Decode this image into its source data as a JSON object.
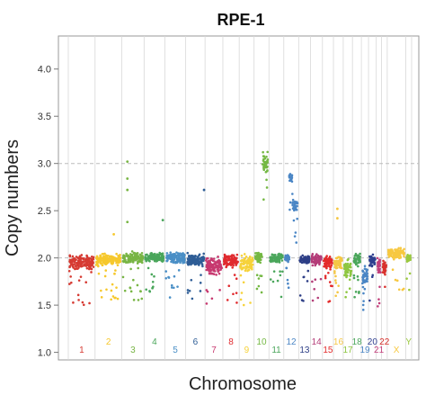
{
  "chart_data": {
    "type": "scatter",
    "title": "RPE-1",
    "xlabel": "Chromosome",
    "ylabel": "Copy numbers",
    "ylim": [
      0.92,
      4.35
    ],
    "yticks": [
      "1.0",
      "1.5",
      "2.0",
      "2.5",
      "3.0",
      "3.5",
      "4.0"
    ],
    "grid": "vertical chromosome separators with dashed horizontal reference lines at 2.0 and 3.0",
    "chromosomes": [
      {
        "label": "1",
        "color": "#d63a32",
        "label_row": "lower",
        "base": 1.95,
        "spread": 0.1,
        "bumps": []
      },
      {
        "label": "2",
        "color": "#f6c82c",
        "label_row": "upper",
        "base": 1.98,
        "spread": 0.08,
        "bumps": [
          [
            0.7,
            2.25
          ]
        ]
      },
      {
        "label": "3",
        "color": "#78b544",
        "label_row": "lower",
        "base": 2.0,
        "spread": 0.08,
        "bumps": [
          [
            0.25,
            3.02
          ],
          [
            0.25,
            2.84
          ],
          [
            0.25,
            2.72
          ],
          [
            0.25,
            2.38
          ]
        ]
      },
      {
        "label": "4",
        "color": "#4aa65b",
        "label_row": "upper",
        "base": 2.0,
        "spread": 0.07,
        "bumps": [
          [
            0.4,
            1.68
          ],
          [
            0.9,
            2.4
          ]
        ]
      },
      {
        "label": "5",
        "color": "#4a8fc6",
        "label_row": "lower",
        "base": 2.0,
        "spread": 0.08,
        "bumps": []
      },
      {
        "label": "6",
        "color": "#2e5d96",
        "label_row": "upper",
        "base": 1.98,
        "spread": 0.08,
        "bumps": [
          [
            0.95,
            2.72
          ]
        ]
      },
      {
        "label": "7",
        "color": "#c7386f",
        "label_row": "lower",
        "base": 1.92,
        "spread": 0.13,
        "bumps": []
      },
      {
        "label": "8",
        "color": "#e02b2f",
        "label_row": "upper",
        "base": 1.97,
        "spread": 0.09,
        "bumps": []
      },
      {
        "label": "9",
        "color": "#f6d23a",
        "label_row": "lower",
        "base": 1.95,
        "spread": 0.12,
        "bumps": []
      },
      {
        "label": "10",
        "color": "#74b843",
        "label_row": "upper",
        "base": 2.0,
        "spread": 0.08,
        "segments": [
          [
            0.55,
            1.0,
            3.0,
            0.15
          ]
        ]
      },
      {
        "label": "11",
        "color": "#4aa65b",
        "label_row": "lower",
        "base": 2.0,
        "spread": 0.07,
        "bumps": []
      },
      {
        "label": "12",
        "color": "#4b86c5",
        "label_row": "upper",
        "base": 2.0,
        "spread": 0.07,
        "segments": [
          [
            0.35,
            0.6,
            2.85,
            0.08
          ],
          [
            0.6,
            1.0,
            2.55,
            0.09
          ]
        ]
      },
      {
        "label": "13",
        "color": "#2d3e86",
        "label_row": "lower",
        "base": 1.98,
        "spread": 0.07,
        "bumps": []
      },
      {
        "label": "14",
        "color": "#b43d78",
        "label_row": "upper",
        "base": 1.98,
        "spread": 0.08,
        "bumps": []
      },
      {
        "label": "15",
        "color": "#e32b2b",
        "label_row": "lower",
        "base": 1.95,
        "spread": 0.09,
        "bumps": []
      },
      {
        "label": "16",
        "color": "#f5c744",
        "label_row": "upper",
        "base": 1.95,
        "spread": 0.1,
        "bumps": [
          [
            0.4,
            2.52
          ],
          [
            0.4,
            2.42
          ]
        ]
      },
      {
        "label": "17",
        "color": "#8ec641",
        "label_row": "lower",
        "base": 1.88,
        "spread": 0.15,
        "bumps": []
      },
      {
        "label": "18",
        "color": "#4aa65b",
        "label_row": "upper",
        "base": 1.98,
        "spread": 0.08,
        "bumps": []
      },
      {
        "label": "19",
        "color": "#4b86c5",
        "label_row": "lower",
        "base": 1.8,
        "spread": 0.15,
        "bumps": []
      },
      {
        "label": "20",
        "color": "#2e3f8f",
        "label_row": "upper",
        "base": 1.97,
        "spread": 0.08,
        "bumps": []
      },
      {
        "label": "21",
        "color": "#c23f7b",
        "label_row": "lower",
        "base": 1.92,
        "spread": 0.12,
        "bumps": []
      },
      {
        "label": "22",
        "color": "#d8312c",
        "label_row": "upper",
        "base": 1.9,
        "spread": 0.13,
        "bumps": []
      },
      {
        "label": "X",
        "color": "#f7c841",
        "label_row": "lower",
        "base": 2.05,
        "spread": 0.07,
        "bumps": []
      },
      {
        "label": "Y",
        "color": "#9bc93f",
        "label_row": "upper",
        "base": 2.0,
        "spread": 0.05,
        "bumps": []
      }
    ]
  }
}
